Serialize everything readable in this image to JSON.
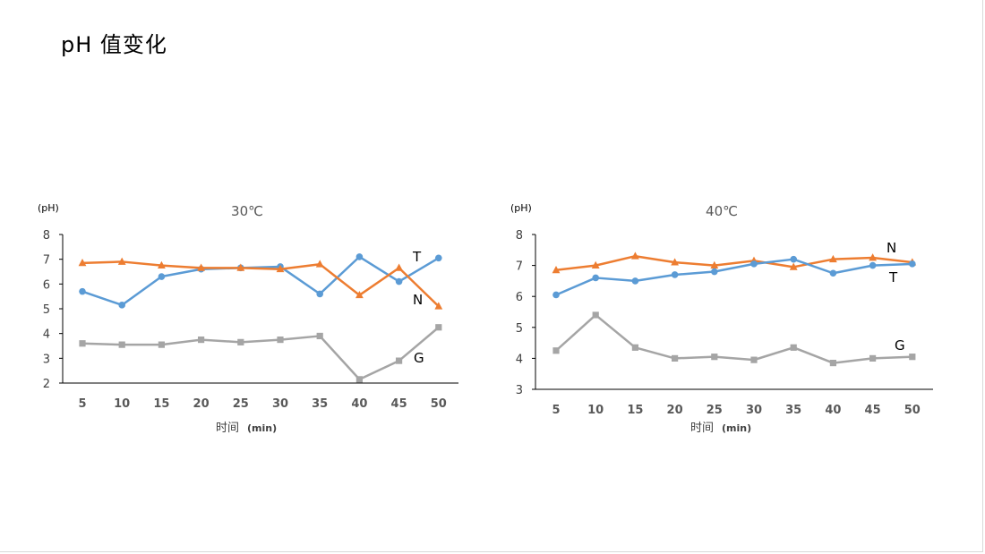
{
  "page": {
    "title": "pH 值变化"
  },
  "chart_data": [
    {
      "type": "line",
      "title": "30℃",
      "y_unit": "(pH)",
      "xlabel": "时间",
      "xlabel_unit": "(min)",
      "categories": [
        "5",
        "10",
        "15",
        "20",
        "25",
        "30",
        "35",
        "40",
        "45",
        "50"
      ],
      "ylim": [
        2,
        8
      ],
      "y_ticks": [
        2,
        3,
        4,
        5,
        6,
        7,
        8
      ],
      "grid": false,
      "legend": "inline labels",
      "series": [
        {
          "name": "T",
          "color": "#5B9BD5",
          "marker": "circle",
          "values": [
            5.7,
            5.15,
            6.3,
            6.6,
            6.65,
            6.7,
            5.6,
            7.1,
            6.1,
            7.05
          ]
        },
        {
          "name": "N",
          "color": "#ED7D31",
          "marker": "triangle",
          "values": [
            6.85,
            6.9,
            6.75,
            6.65,
            6.65,
            6.6,
            6.8,
            5.55,
            6.65,
            5.1
          ]
        },
        {
          "name": "G",
          "color": "#A5A5A5",
          "marker": "square",
          "values": [
            3.6,
            3.55,
            3.55,
            3.75,
            3.65,
            3.75,
            3.9,
            2.15,
            2.9,
            4.25
          ]
        }
      ]
    },
    {
      "type": "line",
      "title": "40℃",
      "y_unit": "(pH)",
      "xlabel": "时间",
      "xlabel_unit": "(min)",
      "categories": [
        "5",
        "10",
        "15",
        "20",
        "25",
        "30",
        "35",
        "40",
        "45",
        "50"
      ],
      "ylim": [
        3,
        8
      ],
      "y_ticks": [
        3,
        4,
        5,
        6,
        7,
        8
      ],
      "grid": false,
      "legend": "inline labels",
      "series": [
        {
          "name": "N",
          "color": "#ED7D31",
          "marker": "triangle",
          "values": [
            6.85,
            7.0,
            7.3,
            7.1,
            7.0,
            7.15,
            6.95,
            7.2,
            7.25,
            7.1
          ]
        },
        {
          "name": "T",
          "color": "#5B9BD5",
          "marker": "circle",
          "values": [
            6.05,
            6.6,
            6.5,
            6.7,
            6.8,
            7.05,
            7.2,
            6.75,
            7.0,
            7.05
          ]
        },
        {
          "name": "G",
          "color": "#A5A5A5",
          "marker": "square",
          "values": [
            4.25,
            5.4,
            4.35,
            4.0,
            4.05,
            3.95,
            4.35,
            3.85,
            4.0,
            4.05
          ]
        }
      ]
    }
  ]
}
